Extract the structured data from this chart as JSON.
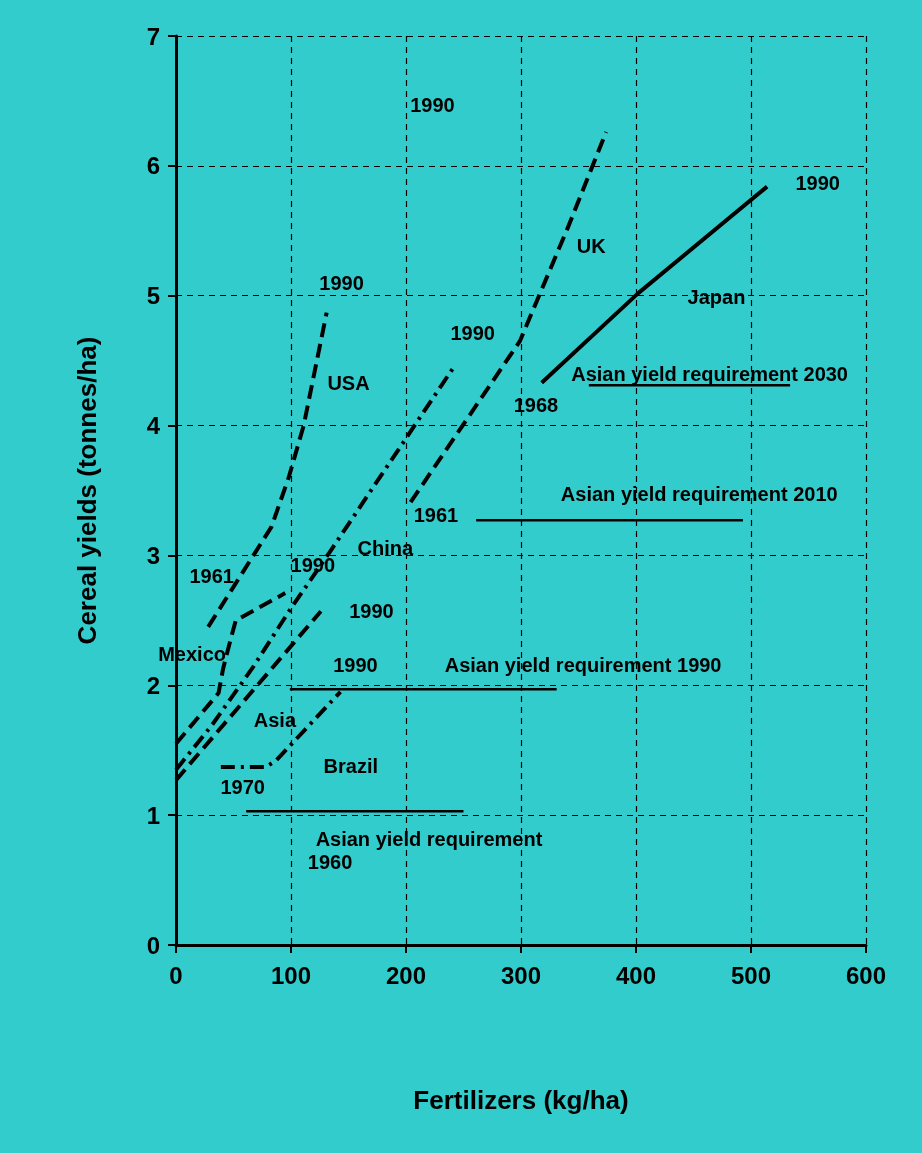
{
  "chart_data": {
    "type": "line",
    "xlabel": "Fertilizers (kg/ha)",
    "ylabel": "Cereal yields (tonnes/ha)",
    "xlim": [
      0,
      600
    ],
    "xticks": [
      0,
      100,
      200,
      300,
      400,
      500,
      600
    ],
    "ylim": [
      0,
      7
    ],
    "yticks": [
      0,
      1,
      2,
      3,
      4,
      5,
      6,
      7
    ],
    "grid": true,
    "marker": "none",
    "series": [
      {
        "color": "#000000",
        "line_style": "dashed",
        "x": [
          28,
          83,
          98,
          111,
          131
        ],
        "values": [
          2.45,
          3.22,
          3.6,
          4.0,
          4.87
        ]
      },
      {
        "color": "#000000",
        "line_style": "dashed",
        "x": [
          0,
          37,
          41,
          48,
          52,
          95
        ],
        "values": [
          1.55,
          1.94,
          2.13,
          2.37,
          2.5,
          2.71
        ]
      },
      {
        "color": "#000000",
        "line_style": "dashed",
        "x": [
          0,
          126
        ],
        "values": [
          1.27,
          2.57
        ]
      },
      {
        "color": "#000000",
        "line_style": "dashdot",
        "x": [
          0,
          31,
          67,
          99,
          134,
          243
        ],
        "values": [
          1.35,
          1.69,
          2.14,
          2.58,
          3.03,
          4.47
        ]
      },
      {
        "color": "#000000",
        "line_style": "dashdot",
        "x": [
          39,
          78,
          87,
          143
        ],
        "values": [
          1.37,
          1.37,
          1.42,
          1.95
        ]
      },
      {
        "color": "#000000",
        "line_style": "dashed",
        "x": [
          204,
          299,
          341,
          374
        ],
        "values": [
          3.41,
          4.65,
          5.53,
          6.26
        ]
      },
      {
        "color": "#000000",
        "line_style": "solid",
        "x": [
          318,
          402,
          514
        ],
        "values": [
          4.33,
          5.02,
          5.84
        ]
      },
      {
        "color": "#000000",
        "line_style": "solid",
        "x": [
          61,
          250
        ],
        "values": [
          1.03,
          1.03
        ]
      },
      {
        "color": "#000000",
        "line_style": "solid",
        "x": [
          99,
          331
        ],
        "values": [
          1.97,
          1.97
        ]
      },
      {
        "color": "#000000",
        "line_style": "solid",
        "x": [
          261,
          493
        ],
        "values": [
          3.27,
          3.27
        ]
      },
      {
        "color": "#000000",
        "line_style": "solid",
        "x": [
          359,
          534
        ],
        "values": [
          4.31,
          4.31
        ]
      }
    ],
    "annotations": [
      "1990",
      "1990",
      "UK",
      "Japan",
      "1990",
      "USA",
      "1990",
      "1968",
      "1961",
      "China",
      "1961",
      "1990",
      "1990",
      "Mexico",
      "1990",
      "Asia",
      "1970",
      "Brazil",
      "Asian yield requirement",
      "1960",
      "Asian yield requirement 1990",
      "Asian yield requirement 2010",
      "Asian yield requirement 2030"
    ]
  }
}
